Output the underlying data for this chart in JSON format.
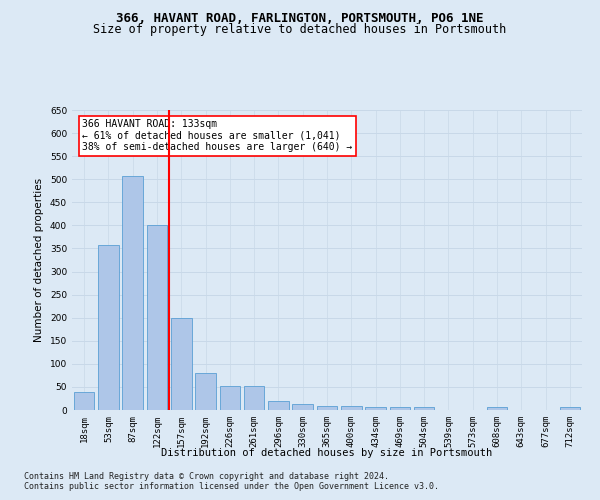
{
  "title": "366, HAVANT ROAD, FARLINGTON, PORTSMOUTH, PO6 1NE",
  "subtitle": "Size of property relative to detached houses in Portsmouth",
  "xlabel": "Distribution of detached houses by size in Portsmouth",
  "ylabel": "Number of detached properties",
  "categories": [
    "18sqm",
    "53sqm",
    "87sqm",
    "122sqm",
    "157sqm",
    "192sqm",
    "226sqm",
    "261sqm",
    "296sqm",
    "330sqm",
    "365sqm",
    "400sqm",
    "434sqm",
    "469sqm",
    "504sqm",
    "539sqm",
    "573sqm",
    "608sqm",
    "643sqm",
    "677sqm",
    "712sqm"
  ],
  "values": [
    38,
    357,
    507,
    400,
    200,
    80,
    53,
    53,
    20,
    12,
    8,
    8,
    6,
    6,
    6,
    0,
    0,
    6,
    0,
    0,
    6
  ],
  "bar_color": "#aec6e8",
  "bar_edge_color": "#5a9fd4",
  "vline_x_index": 3,
  "vline_color": "red",
  "annotation_text": "366 HAVANT ROAD: 133sqm\n← 61% of detached houses are smaller (1,041)\n38% of semi-detached houses are larger (640) →",
  "annotation_box_color": "white",
  "annotation_box_edge_color": "red",
  "grid_color": "#c8d8e8",
  "background_color": "#dce9f5",
  "plot_bg_color": "#dce9f5",
  "footer1": "Contains HM Land Registry data © Crown copyright and database right 2024.",
  "footer2": "Contains public sector information licensed under the Open Government Licence v3.0.",
  "ylim": [
    0,
    650
  ],
  "yticks": [
    0,
    50,
    100,
    150,
    200,
    250,
    300,
    350,
    400,
    450,
    500,
    550,
    600,
    650
  ],
  "title_fontsize": 9,
  "subtitle_fontsize": 8.5,
  "axis_label_fontsize": 7.5,
  "tick_fontsize": 6.5,
  "footer_fontsize": 6.0,
  "annotation_fontsize": 7.0
}
